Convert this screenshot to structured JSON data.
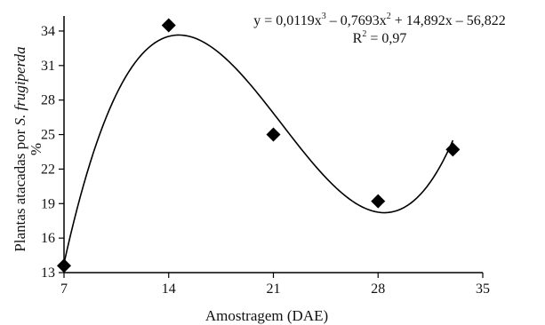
{
  "chart_data": {
    "type": "scatter",
    "x": [
      7,
      14,
      21,
      28,
      33
    ],
    "y": [
      13.6,
      34.5,
      25.0,
      19.2,
      23.7
    ],
    "xticks": [
      "7",
      "14",
      "21",
      "28",
      "35"
    ],
    "yticks": [
      "13",
      "16",
      "19",
      "22",
      "25",
      "28",
      "31",
      "34"
    ],
    "xlim": [
      7,
      35
    ],
    "ylim": [
      13,
      35
    ],
    "xlabel": "Amostragem (DAE)",
    "ylabel_main": "Plantas atacadas por ",
    "ylabel_species": "S. frugiperda",
    "ylabel_unit": "%",
    "fit": {
      "type": "polynomial",
      "coefficients": [
        0.0119,
        -0.7693,
        14.892,
        -56.822
      ],
      "x_range": [
        7,
        33
      ]
    },
    "equation": {
      "y_part": "y = 0,0119x",
      "sup1": "3",
      "mid1": " – 0,7693x",
      "sup2": "2",
      "rest": " + 14,892x – 56,822",
      "r2_label": "R",
      "r2_sup": "2",
      "r2_value": " = 0,97"
    },
    "grid": false,
    "marker": "diamond",
    "color": "#000000"
  }
}
